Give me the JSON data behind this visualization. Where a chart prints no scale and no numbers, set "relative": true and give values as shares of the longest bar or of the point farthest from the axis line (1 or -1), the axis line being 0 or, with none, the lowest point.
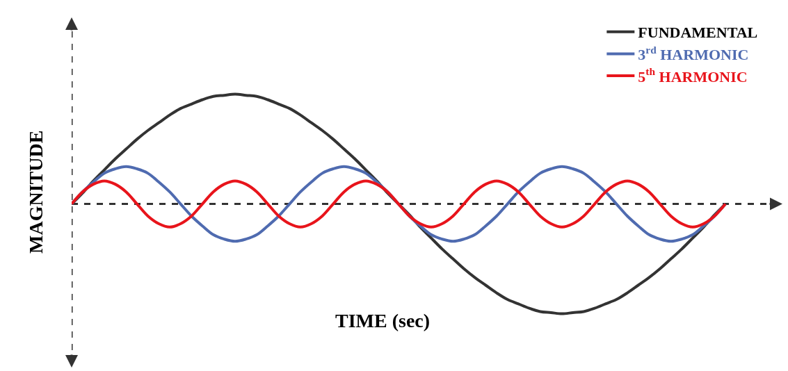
{
  "chart_data": {
    "type": "line",
    "relative": true,
    "xlabel": "TIME (sec)",
    "ylabel": "MAGNITUDE",
    "legend": "top right",
    "marker": "none",
    "line_style": "solid",
    "categories": [
      null,
      null,
      null,
      null,
      null,
      null,
      null,
      null,
      null,
      null,
      null,
      null,
      null,
      null,
      null,
      null,
      null,
      null,
      null,
      null,
      null,
      null,
      null,
      null,
      null,
      null,
      null,
      null,
      null,
      null,
      null,
      null,
      null,
      null,
      null,
      null,
      null,
      null,
      null,
      null,
      null,
      null,
      null,
      null,
      null,
      null,
      null,
      null,
      null,
      null,
      null,
      null,
      null,
      null,
      null,
      null,
      null,
      null,
      null,
      null,
      null
    ],
    "series": [
      {
        "name": "FUNDAMENTAL",
        "color": "#333333",
        "values": [
          0,
          0.1,
          0.21,
          0.31,
          0.41,
          0.5,
          0.59,
          0.67,
          0.74,
          0.81,
          0.87,
          0.91,
          0.95,
          0.98,
          0.99,
          1,
          0.99,
          0.98,
          0.95,
          0.91,
          0.87,
          0.81,
          0.74,
          0.67,
          0.59,
          0.5,
          0.41,
          0.31,
          0.21,
          0.1,
          0,
          -0.1,
          -0.21,
          -0.31,
          -0.41,
          -0.5,
          -0.59,
          -0.67,
          -0.74,
          -0.81,
          -0.87,
          -0.91,
          -0.95,
          -0.98,
          -0.99,
          -1,
          -0.99,
          -0.98,
          -0.95,
          -0.91,
          -0.87,
          -0.81,
          -0.74,
          -0.67,
          -0.59,
          -0.5,
          -0.41,
          -0.31,
          -0.21,
          -0.1,
          0
        ]
      },
      {
        "name": "3$^{rd}$ HARMONIC",
        "color": "#4f6bb0",
        "values": [
          0,
          0.11,
          0.2,
          0.28,
          0.32,
          0.34,
          0.32,
          0.28,
          0.2,
          0.11,
          0,
          -0.11,
          -0.2,
          -0.28,
          -0.32,
          -0.34,
          -0.32,
          -0.28,
          -0.2,
          -0.11,
          0,
          0.11,
          0.2,
          0.28,
          0.32,
          0.34,
          0.32,
          0.28,
          0.2,
          0.11,
          0,
          -0.11,
          -0.2,
          -0.28,
          -0.32,
          -0.34,
          -0.32,
          -0.28,
          -0.2,
          -0.11,
          0,
          0.11,
          0.2,
          0.28,
          0.32,
          0.34,
          0.32,
          0.28,
          0.2,
          0.11,
          0,
          -0.11,
          -0.2,
          -0.28,
          -0.32,
          -0.34,
          -0.32,
          -0.28,
          -0.2,
          -0.11,
          0
        ]
      },
      {
        "name": "5$^{th}$ HARMONIC",
        "color": "#e8141b",
        "values": [
          0,
          0.11,
          0.18,
          0.21,
          0.18,
          0.11,
          0,
          -0.11,
          -0.18,
          -0.21,
          -0.18,
          -0.11,
          0,
          0.11,
          0.18,
          0.21,
          0.18,
          0.11,
          0,
          -0.11,
          -0.18,
          -0.21,
          -0.18,
          -0.11,
          0,
          0.11,
          0.18,
          0.21,
          0.18,
          0.11,
          0,
          -0.11,
          -0.18,
          -0.21,
          -0.18,
          -0.11,
          0,
          0.11,
          0.18,
          0.21,
          0.18,
          0.11,
          0,
          -0.11,
          -0.18,
          -0.21,
          -0.18,
          -0.11,
          0,
          0.11,
          0.18,
          0.21,
          0.18,
          0.11,
          0,
          -0.11,
          -0.18,
          -0.21,
          -0.18,
          -0.11,
          0
        ]
      }
    ]
  }
}
